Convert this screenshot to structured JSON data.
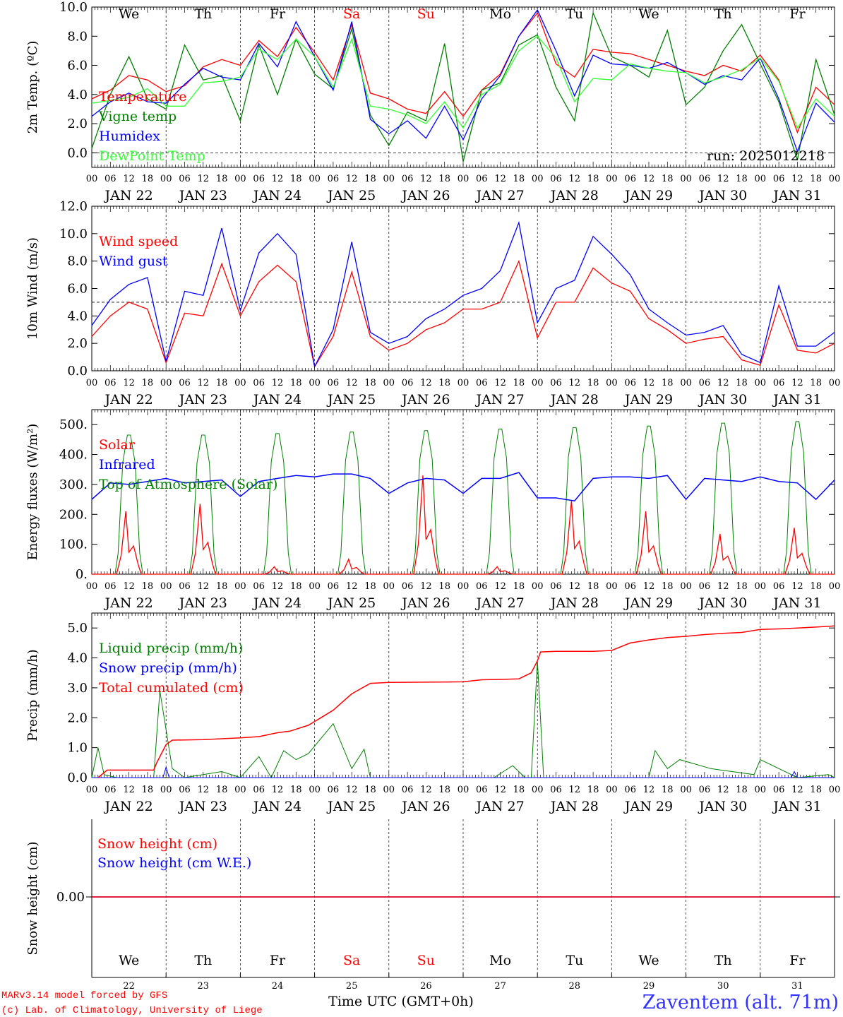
{
  "days": [
    {
      "abbr": "We",
      "date": "JAN 22",
      "num": "22",
      "weekend": false
    },
    {
      "abbr": "Th",
      "date": "JAN 23",
      "num": "23",
      "weekend": false
    },
    {
      "abbr": "Fr",
      "date": "JAN 24",
      "num": "24",
      "weekend": false
    },
    {
      "abbr": "Sa",
      "date": "JAN 25",
      "num": "25",
      "weekend": true
    },
    {
      "abbr": "Su",
      "date": "JAN 26",
      "num": "26",
      "weekend": true
    },
    {
      "abbr": "Mo",
      "date": "JAN 27",
      "num": "27",
      "weekend": false
    },
    {
      "abbr": "Tu",
      "date": "JAN 28",
      "num": "28",
      "weekend": false
    },
    {
      "abbr": "We",
      "date": "JAN 29",
      "num": "29",
      "weekend": false
    },
    {
      "abbr": "Th",
      "date": "JAN 30",
      "num": "30",
      "weekend": false
    },
    {
      "abbr": "Fr",
      "date": "JAN 31",
      "num": "31",
      "weekend": false
    }
  ],
  "hour_labels": [
    "00",
    "06",
    "12",
    "18"
  ],
  "colors": {
    "red": "#ff0000",
    "green": "#008000",
    "blue": "#0000ff",
    "lightgreen": "#33ff33",
    "weekend": "#ff0000",
    "place": "#3333ff"
  },
  "footer": {
    "credit1": "MARv3.14 model forced by GFS",
    "credit2": "(c) Lab. of Climatology, University of Liege",
    "xlabel": "Time UTC (GMT+0h)",
    "place": "Zaventem (alt. 71m)"
  },
  "chart_data": [
    {
      "type": "line",
      "ylabel": "2m Temp. (ºC)",
      "ylim": [
        -1,
        10
      ],
      "yticks": [
        "10.0",
        "8.0",
        "6.0",
        "4.0",
        "2.0",
        "0.0"
      ],
      "ytick_values": [
        10,
        8,
        6,
        4,
        2,
        0
      ],
      "refline": 0,
      "run": "run: 2025012218",
      "x_hours": [
        0,
        6,
        12,
        18,
        24,
        30,
        36,
        42,
        48,
        54,
        60,
        66,
        72,
        78,
        84,
        90,
        96,
        102,
        108,
        114,
        120,
        126,
        132,
        138,
        144,
        150,
        156,
        162,
        168,
        174,
        180,
        186,
        192,
        198,
        204,
        210,
        216,
        222,
        228,
        234,
        240
      ],
      "series": [
        {
          "name": "Temperature",
          "color": "red",
          "values": [
            3.7,
            4.3,
            5.3,
            5.0,
            4.2,
            4.6,
            5.9,
            6.4,
            6.0,
            7.7,
            6.6,
            8.6,
            6.9,
            5.0,
            8.8,
            4.1,
            3.7,
            3.0,
            2.7,
            4.2,
            2.5,
            4.3,
            5.4,
            8.0,
            9.6,
            6.1,
            5.2,
            7.1,
            6.9,
            6.8,
            6.4,
            6.0,
            5.6,
            5.3,
            6.0,
            5.6,
            6.7,
            5.0,
            1.4,
            4.5,
            3.3
          ]
        },
        {
          "name": "Vigne temp",
          "color": "green",
          "values": [
            0.3,
            4.0,
            6.6,
            3.7,
            3.0,
            7.4,
            5.0,
            5.3,
            2.2,
            7.4,
            4.0,
            7.8,
            5.4,
            4.4,
            8.5,
            2.6,
            0.5,
            2.8,
            2.2,
            7.5,
            -0.6,
            4.3,
            4.8,
            7.4,
            8.1,
            4.5,
            2.2,
            9.6,
            6.6,
            6.0,
            5.2,
            8.4,
            3.3,
            4.5,
            7.0,
            8.8,
            6.1,
            3.5,
            -0.5,
            6.4,
            2.6
          ]
        },
        {
          "name": "Humidex",
          "color": "blue",
          "values": [
            2.5,
            3.5,
            4.1,
            3.5,
            3.4,
            4.7,
            5.8,
            5.2,
            5.0,
            7.5,
            5.9,
            9.0,
            6.6,
            4.3,
            9.0,
            2.3,
            1.3,
            2.2,
            1.0,
            3.2,
            0.9,
            3.7,
            5.3,
            8.0,
            9.8,
            7.0,
            3.9,
            6.7,
            6.1,
            6.0,
            5.8,
            6.2,
            5.5,
            4.7,
            5.3,
            5.0,
            6.5,
            3.7,
            0.1,
            3.4,
            2.1
          ]
        },
        {
          "name": "DewPoint Temp",
          "color": "lightgreen",
          "values": [
            3.4,
            3.6,
            3.8,
            4.4,
            3.2,
            3.2,
            4.8,
            4.9,
            5.2,
            7.1,
            6.4,
            7.8,
            6.6,
            4.5,
            7.8,
            3.2,
            3.0,
            2.6,
            2.0,
            3.5,
            1.7,
            4.0,
            4.7,
            7.0,
            8.0,
            6.5,
            3.5,
            5.1,
            5.0,
            6.1,
            5.8,
            5.6,
            5.5,
            4.8,
            5.2,
            5.7,
            6.5,
            4.9,
            1.7,
            3.7,
            2.5
          ]
        }
      ]
    },
    {
      "type": "line",
      "ylabel": "10m Wind (m/s)",
      "ylim": [
        0,
        12
      ],
      "yticks": [
        "12.0",
        "10.0",
        "8.0",
        "6.0",
        "4.0",
        "2.0",
        "0.0"
      ],
      "ytick_values": [
        12,
        10,
        8,
        6,
        4,
        2,
        0
      ],
      "refline": 5,
      "x_hours": [
        0,
        6,
        12,
        18,
        24,
        30,
        36,
        42,
        48,
        54,
        60,
        66,
        72,
        78,
        84,
        90,
        96,
        102,
        108,
        114,
        120,
        126,
        132,
        138,
        144,
        150,
        156,
        162,
        168,
        174,
        180,
        186,
        192,
        198,
        204,
        210,
        216,
        222,
        228,
        234,
        240
      ],
      "series": [
        {
          "name": "Wind speed",
          "color": "red",
          "values": [
            2.5,
            4.0,
            5.0,
            4.5,
            0.6,
            4.2,
            4.0,
            7.8,
            4.0,
            6.5,
            7.7,
            6.5,
            0.3,
            2.5,
            7.2,
            2.5,
            1.5,
            2.0,
            3.0,
            3.5,
            4.5,
            4.5,
            5.0,
            8.0,
            2.4,
            5.0,
            5.0,
            7.5,
            6.4,
            5.8,
            3.8,
            3.0,
            2.0,
            2.3,
            2.5,
            0.8,
            0.4,
            4.8,
            1.5,
            1.3,
            2.0
          ]
        },
        {
          "name": "Wind gust",
          "color": "blue",
          "values": [
            3.3,
            5.2,
            6.3,
            6.8,
            0.7,
            5.8,
            5.5,
            10.4,
            4.4,
            8.6,
            10.0,
            8.5,
            0.3,
            3.0,
            9.4,
            2.8,
            2.0,
            2.5,
            3.8,
            4.5,
            5.5,
            6.0,
            7.3,
            10.8,
            3.5,
            6.0,
            6.6,
            9.8,
            8.5,
            7.0,
            4.5,
            3.5,
            2.6,
            2.8,
            3.3,
            1.2,
            0.6,
            6.2,
            1.8,
            1.8,
            2.8
          ]
        }
      ]
    },
    {
      "type": "line",
      "ylabel": "Energy fluxes (W/m²)",
      "ylim": [
        0,
        550
      ],
      "yticks": [
        "500.",
        "400.",
        "300.",
        "200.",
        "100.",
        "0."
      ],
      "ytick_values": [
        500,
        400,
        300,
        200,
        100,
        0
      ],
      "series": [
        {
          "name": "Solar",
          "color": "red",
          "peaks": [
            210,
            235,
            25,
            50,
            330,
            25,
            245,
            210,
            135,
            155
          ]
        },
        {
          "name": "Infrared",
          "color": "blue",
          "x_hours": [
            0,
            6,
            12,
            18,
            24,
            30,
            36,
            42,
            48,
            54,
            60,
            66,
            72,
            78,
            84,
            90,
            96,
            102,
            108,
            114,
            120,
            126,
            132,
            138,
            144,
            150,
            156,
            162,
            168,
            174,
            180,
            186,
            192,
            198,
            204,
            210,
            216,
            222,
            228,
            234,
            240
          ],
          "values": [
            250,
            305,
            300,
            310,
            320,
            305,
            310,
            315,
            260,
            310,
            320,
            330,
            325,
            335,
            335,
            320,
            270,
            305,
            320,
            315,
            270,
            320,
            320,
            340,
            255,
            255,
            245,
            320,
            325,
            325,
            320,
            330,
            250,
            320,
            315,
            310,
            325,
            310,
            305,
            250,
            315
          ]
        },
        {
          "name": "Top of Atmosphere (Solar)",
          "color": "green",
          "peaks": [
            465,
            465,
            470,
            475,
            480,
            485,
            490,
            495,
            505,
            510
          ]
        }
      ]
    },
    {
      "type": "line",
      "ylabel": "Precip (mm/h)",
      "ylim": [
        0,
        5.5
      ],
      "yticks": [
        "5.0",
        "4.0",
        "3.0",
        "2.0",
        "1.0",
        "0.0"
      ],
      "ytick_values": [
        5,
        4,
        3,
        2,
        1,
        0
      ],
      "series": [
        {
          "name": "Liquid precip (mm/h)",
          "color": "green",
          "x_hours": [
            0,
            2,
            4,
            8,
            20,
            22,
            26,
            30,
            42,
            48,
            54,
            58,
            62,
            66,
            70,
            78,
            84,
            88,
            90,
            96,
            130,
            136,
            140,
            142,
            144,
            146,
            180,
            182,
            186,
            190,
            200,
            214,
            216,
            228,
            238,
            240
          ],
          "values": [
            0.0,
            1.0,
            0.1,
            0.0,
            0.0,
            2.9,
            0.3,
            0.0,
            0.2,
            0.0,
            0.7,
            0.0,
            0.9,
            0.6,
            0.8,
            1.8,
            0.3,
            0.95,
            0.0,
            0.0,
            0.0,
            0.4,
            0.0,
            0.0,
            3.9,
            0.0,
            0.0,
            0.9,
            0.3,
            0.6,
            0.3,
            0.1,
            0.6,
            0.0,
            0.1,
            0.0
          ]
        },
        {
          "name": "Snow precip (mm/h)",
          "color": "blue",
          "x_hours": [
            0,
            23,
            24,
            25,
            30,
            226,
            227,
            228,
            240
          ],
          "values": [
            0.0,
            0.0,
            0.35,
            0.0,
            0.0,
            0.0,
            0.2,
            0.0,
            0.0
          ]
        },
        {
          "name": "Total cumulated (cm)",
          "color": "red",
          "x_hours": [
            2,
            5,
            20,
            21,
            23,
            24,
            26,
            36,
            48,
            54,
            60,
            64,
            70,
            74,
            78,
            84,
            90,
            96,
            120,
            126,
            132,
            138,
            142,
            144,
            145,
            150,
            156,
            162,
            168,
            174,
            180,
            186,
            192,
            198,
            204,
            210,
            216,
            222,
            228,
            234,
            240
          ],
          "values": [
            0.0,
            0.25,
            0.25,
            0.5,
            0.9,
            1.1,
            1.25,
            1.27,
            1.33,
            1.37,
            1.5,
            1.55,
            1.75,
            2.0,
            2.25,
            2.8,
            3.15,
            3.18,
            3.2,
            3.27,
            3.28,
            3.3,
            3.5,
            3.9,
            4.2,
            4.22,
            4.22,
            4.22,
            4.25,
            4.5,
            4.6,
            4.68,
            4.72,
            4.78,
            4.82,
            4.85,
            4.95,
            4.97,
            5.0,
            5.03,
            5.07
          ]
        }
      ]
    },
    {
      "type": "line",
      "ylabel": "Snow height (cm)",
      "yticks": [
        "0.00"
      ],
      "ytick_values": [
        0
      ],
      "series": [
        {
          "name": "Snow height (cm)",
          "color": "red",
          "values": [
            0,
            0
          ]
        },
        {
          "name": "Snow height (cm W.E.)",
          "color": "blue",
          "values": [
            0,
            0
          ]
        }
      ]
    }
  ]
}
